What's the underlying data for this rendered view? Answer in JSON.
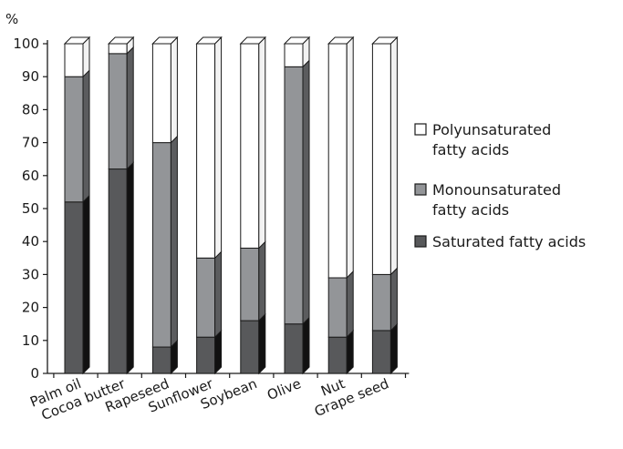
{
  "chart_data": {
    "type": "bar",
    "stacked": true,
    "three_d": true,
    "ylabel": "%",
    "ylim": [
      0,
      100
    ],
    "yticks": [
      0,
      10,
      20,
      30,
      40,
      50,
      60,
      70,
      80,
      90,
      100
    ],
    "grid": false,
    "legend_position": "right",
    "categories": [
      "Palm oil",
      "Cocoa butter",
      "Rapeseed",
      "Sunflower",
      "Soybean",
      "Olive",
      "Nut",
      "Grape seed"
    ],
    "series": [
      {
        "name": "Saturated fatty acids",
        "color": "#58595b",
        "values": [
          52,
          62,
          8,
          11,
          16,
          15,
          11,
          13
        ]
      },
      {
        "name": "Monounsaturated fatty acids",
        "color": "#939598",
        "values": [
          38,
          35,
          62,
          24,
          22,
          78,
          18,
          17
        ]
      },
      {
        "name": "Polyunsaturated fatty acids",
        "color": "#ffffff",
        "values": [
          10,
          3,
          30,
          65,
          62,
          7,
          71,
          70
        ]
      }
    ],
    "legend": [
      {
        "lines": [
          "Polyunsaturated",
          "fatty acids"
        ],
        "color": "#ffffff"
      },
      {
        "lines": [
          "Monounsaturated",
          "fatty acids"
        ],
        "color": "#939598"
      },
      {
        "lines": [
          "Saturated fatty acids"
        ],
        "color": "#58595b"
      }
    ]
  }
}
